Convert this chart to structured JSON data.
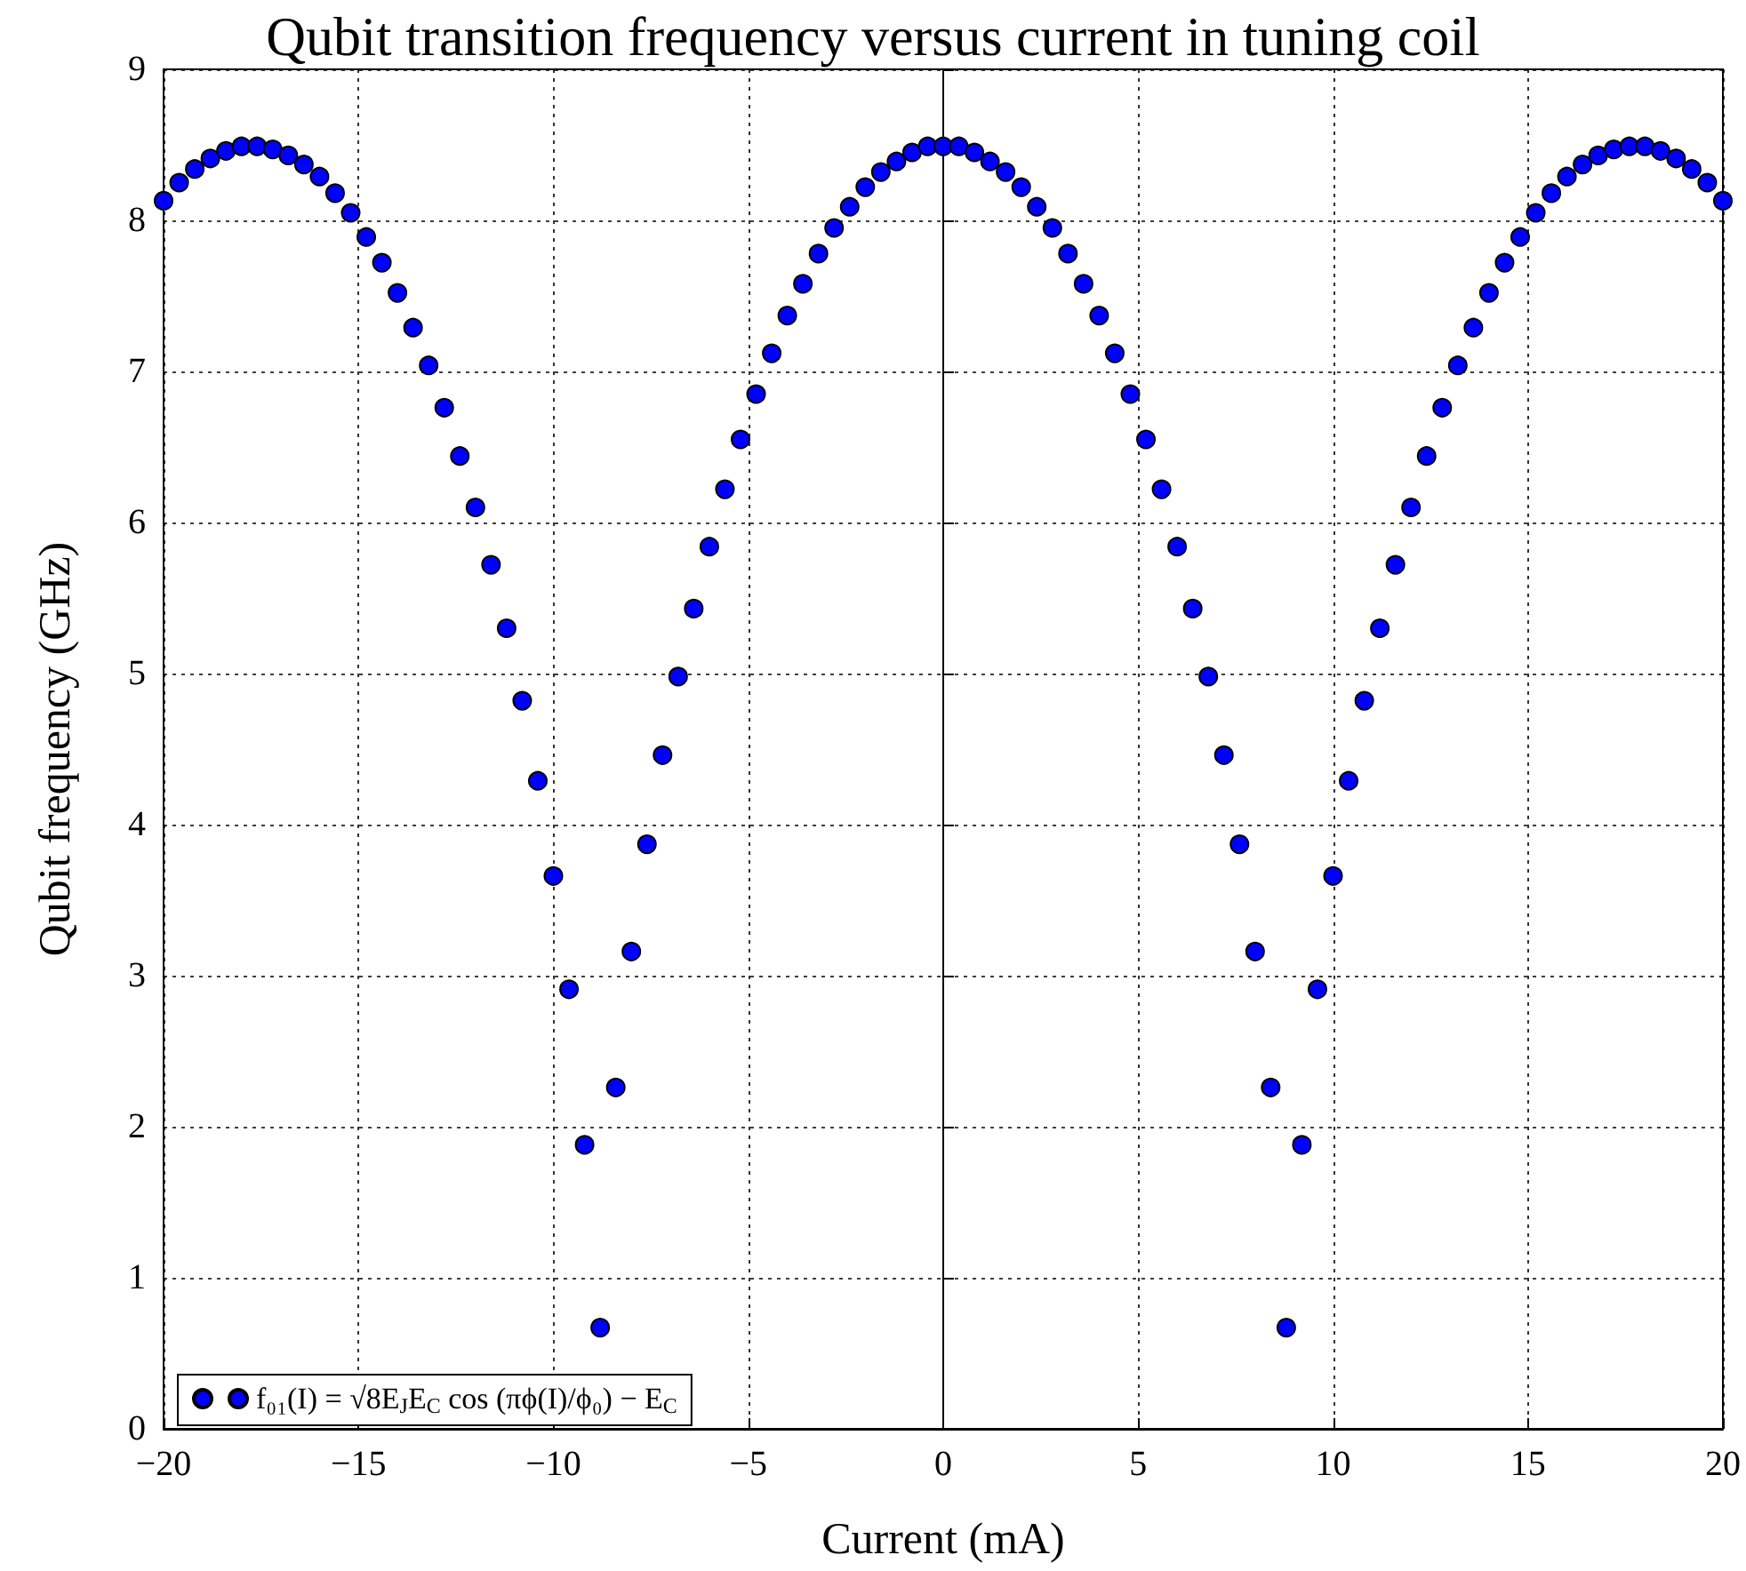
{
  "chart_data": {
    "type": "scatter",
    "title": "Qubit transition frequency versus current in tuning coil",
    "xlabel": "Current (mA)",
    "ylabel": "Qubit frequency (GHz)",
    "x": [
      -20,
      -19.6,
      -19.2,
      -18.8,
      -18.4,
      -18,
      -17.6,
      -17.2,
      -16.8,
      -16.4,
      -16,
      -15.6,
      -15.2,
      -14.8,
      -14.4,
      -14,
      -13.6,
      -13.2,
      -12.8,
      -12.4,
      -12,
      -11.6,
      -11.2,
      -10.8,
      -10.4,
      -10,
      -9.6,
      -9.2,
      -8.8,
      -8.4,
      -8,
      -7.6,
      -7.2,
      -6.8,
      -6.4,
      -6,
      -5.6,
      -5.2,
      -4.8,
      -4.4,
      -4,
      -3.6,
      -3.2,
      -2.8,
      -2.4,
      -2,
      -1.6,
      -1.2,
      -0.8,
      -0.4,
      0,
      0.4,
      0.8,
      1.2,
      1.6,
      2,
      2.4,
      2.8,
      3.2,
      3.6,
      4,
      4.4,
      4.8,
      5.2,
      5.6,
      6,
      6.4,
      6.8,
      7.2,
      7.6,
      8,
      8.4,
      8.8,
      9.2,
      9.6,
      10,
      10.4,
      10.8,
      11.2,
      11.6,
      12,
      12.4,
      12.8,
      13.2,
      13.6,
      14,
      14.4,
      14.8,
      15.2,
      15.6,
      16,
      16.4,
      16.8,
      17.2,
      17.6,
      18,
      18.4,
      18.8,
      19.2,
      19.6,
      20
    ],
    "series": [
      {
        "name": "f₀₁(I) = √8E$_{J}$E$_{C}$ cos (πϕ(I)/ϕ₀) − E$_{C}$",
        "color": "#0000ff",
        "values": [
          8.13,
          8.25,
          8.34,
          8.41,
          8.46,
          8.49,
          8.49,
          8.47,
          8.43,
          8.37,
          8.29,
          8.18,
          8.05,
          7.89,
          7.72,
          7.52,
          7.29,
          7.04,
          6.76,
          6.44,
          6.1,
          5.72,
          5.3,
          4.82,
          4.29,
          3.66,
          2.91,
          1.88,
          0.67,
          2.26,
          3.16,
          3.87,
          4.46,
          4.98,
          5.43,
          5.84,
          6.22,
          6.55,
          6.85,
          7.12,
          7.37,
          7.58,
          7.78,
          7.95,
          8.09,
          8.22,
          8.32,
          8.39,
          8.45,
          8.49,
          8.49,
          8.49,
          8.45,
          8.39,
          8.32,
          8.22,
          8.09,
          7.95,
          7.78,
          7.58,
          7.37,
          7.12,
          6.85,
          6.55,
          6.22,
          5.84,
          5.43,
          4.98,
          4.46,
          3.87,
          3.16,
          2.26,
          0.67,
          1.88,
          2.91,
          3.66,
          4.29,
          4.82,
          5.3,
          5.72,
          6.1,
          6.44,
          6.76,
          7.04,
          7.29,
          7.52,
          7.72,
          7.89,
          8.05,
          8.18,
          8.29,
          8.37,
          8.43,
          8.47,
          8.49,
          8.49,
          8.46,
          8.41,
          8.34,
          8.25,
          8.13
        ]
      }
    ],
    "xlim": [
      -20,
      20
    ],
    "xticks": [
      -20,
      -15,
      -10,
      -5,
      0,
      5,
      10,
      15,
      20
    ],
    "ylim": [
      0,
      9
    ],
    "yticks": [
      0,
      1,
      2,
      3,
      4,
      5,
      6,
      7,
      8,
      9
    ],
    "grid": true,
    "legend": "bottom left",
    "marker": "circle"
  }
}
